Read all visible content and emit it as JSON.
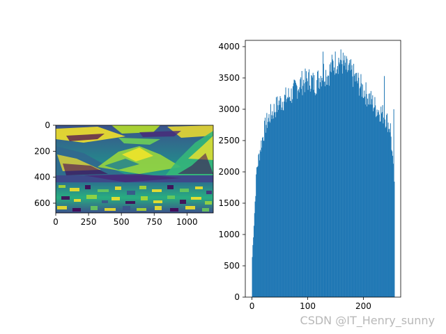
{
  "chart_data": [
    {
      "type": "heatmap",
      "colormap": "viridis",
      "x_ticks": [
        "0",
        "250",
        "500",
        "750",
        "1000"
      ],
      "x_tick_values": [
        0,
        250,
        500,
        750,
        1000
      ],
      "y_ticks": [
        "0",
        "200",
        "400",
        "600"
      ],
      "y_tick_values": [
        0,
        200,
        400,
        600
      ],
      "xlim": [
        0,
        1200
      ],
      "ylim": [
        675,
        0
      ],
      "title": "",
      "xlabel": "",
      "ylabel": ""
    },
    {
      "type": "bar",
      "color": "#1f77b4",
      "x": [
        0,
        8,
        16,
        24,
        32,
        40,
        48,
        56,
        64,
        72,
        80,
        88,
        96,
        104,
        112,
        120,
        128,
        136,
        144,
        152,
        160,
        168,
        176,
        184,
        192,
        200,
        208,
        216,
        224,
        232,
        240,
        248,
        255
      ],
      "values": [
        650,
        2050,
        2450,
        2750,
        2900,
        3000,
        3100,
        3150,
        3200,
        3250,
        3350,
        3420,
        3450,
        3480,
        3400,
        3500,
        3600,
        3550,
        3700,
        3780,
        3770,
        3650,
        3600,
        3500,
        3400,
        3300,
        3200,
        3100,
        3000,
        2950,
        2850,
        2700,
        1750
      ],
      "xlim": [
        -12,
        267
      ],
      "ylim": [
        0,
        4100
      ],
      "x_ticks": [
        "0",
        "100",
        "200"
      ],
      "x_tick_values": [
        0,
        100,
        200
      ],
      "y_ticks": [
        "0",
        "500",
        "1000",
        "1500",
        "2000",
        "2500",
        "3000",
        "3500",
        "4000"
      ],
      "y_tick_values": [
        0,
        500,
        1000,
        1500,
        2000,
        2500,
        3000,
        3500,
        4000
      ],
      "title": "",
      "xlabel": "",
      "ylabel": ""
    }
  ],
  "watermark": "CSDN @IT_Henry_sunny"
}
